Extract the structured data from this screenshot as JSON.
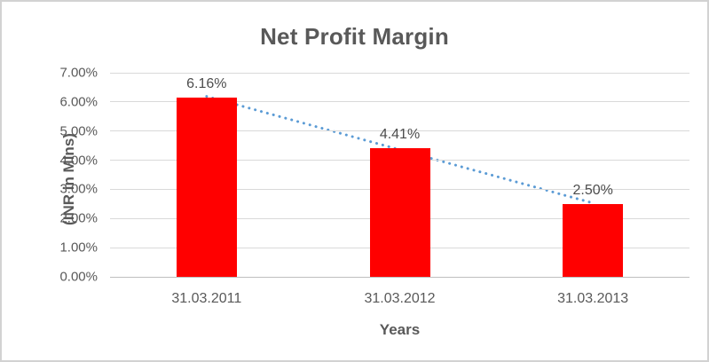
{
  "chart_data": {
    "type": "bar",
    "title": "Net Profit Margin",
    "xlabel": "Years",
    "ylabel": "(INR in Mlns)",
    "categories": [
      "31.03.2011",
      "31.03.2012",
      "31.03.2013"
    ],
    "values": [
      6.16,
      4.41,
      2.5
    ],
    "data_labels": [
      "6.16%",
      "4.41%",
      "2.50%"
    ],
    "y_ticks": [
      "0.00%",
      "1.00%",
      "2.00%",
      "3.00%",
      "4.00%",
      "5.00%",
      "6.00%",
      "7.00%"
    ],
    "ylim": [
      0,
      7
    ],
    "grid": true,
    "legend": "none",
    "bar_color": "#ff0000",
    "trendline": {
      "type": "linear",
      "style": "dotted",
      "color": "#5b9bd5",
      "start_value": 6.19,
      "end_value": 2.53
    },
    "colors": {
      "title_text": "#595959",
      "axis_text": "#595959",
      "data_label_text": "#4d4d4d",
      "gridline": "#d9d9d9",
      "axis_line": "#bfbfbf",
      "chart_border": "#d2d2d2"
    }
  }
}
